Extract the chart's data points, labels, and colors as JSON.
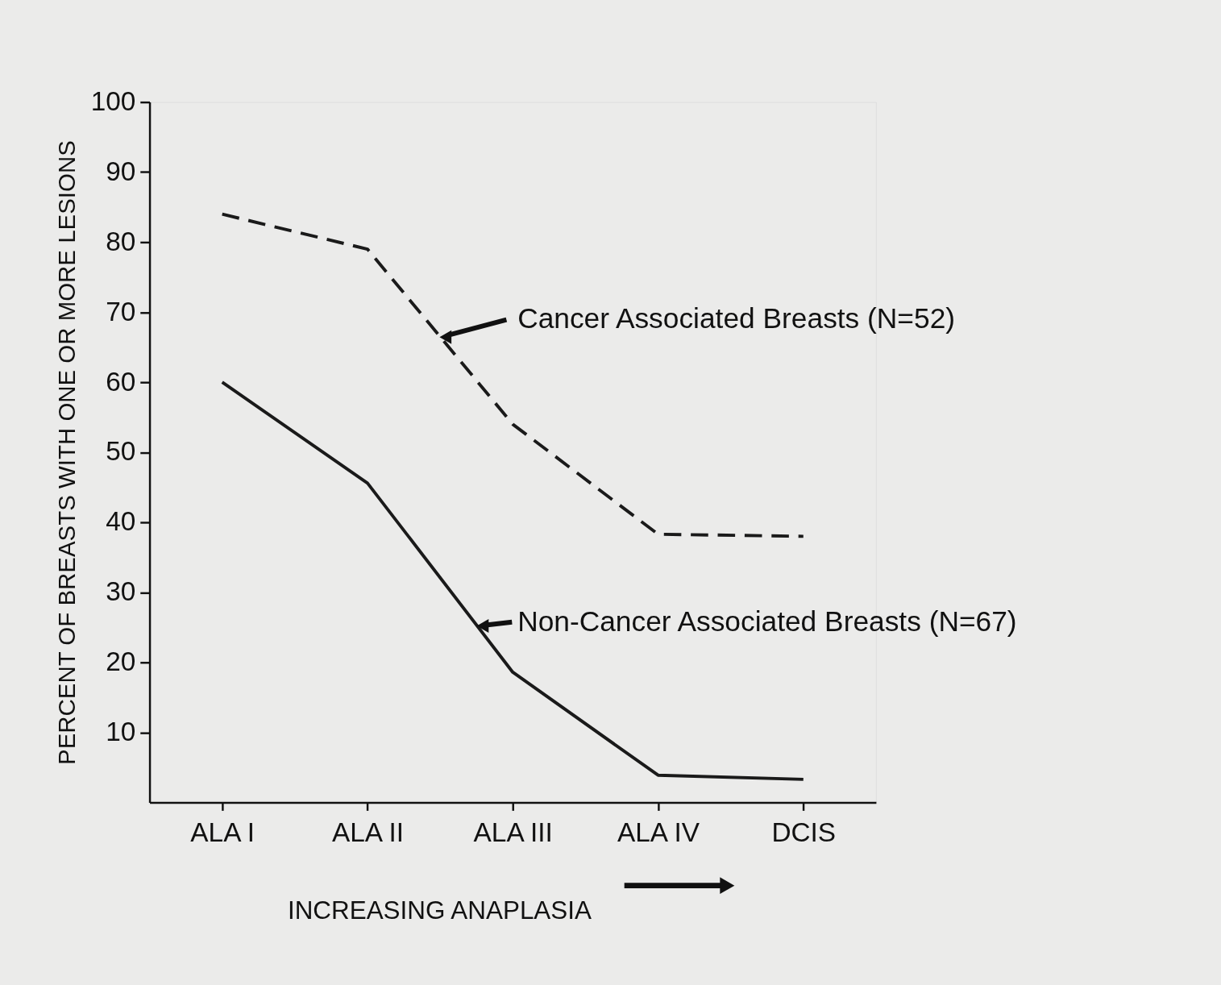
{
  "chart_data": {
    "type": "line",
    "xlabel": "INCREASING ANAPLASIA",
    "ylabel": "PERCENT OF BREASTS WITH ONE OR MORE LESIONS",
    "categories": [
      "ALA I",
      "ALA II",
      "ALA III",
      "ALA IV",
      "DCIS"
    ],
    "series": [
      {
        "color": "#1a1a1a",
        "line_style": "dashed",
        "values": [
          84,
          79,
          54,
          38.3,
          38
        ]
      },
      {
        "color": "#1a1a1a",
        "line_style": "solid",
        "values": [
          60,
          45.6,
          18.6,
          3.9,
          3.3
        ]
      }
    ],
    "annotations": [
      "Cancer Associated Breasts (N=52)",
      "Non-Cancer Associated Breasts (N=67)"
    ],
    "ylim": [
      0,
      100
    ],
    "yticks": [
      10,
      20,
      30,
      40,
      50,
      60,
      70,
      80,
      90,
      100
    ],
    "grid": false,
    "marker": "none"
  }
}
